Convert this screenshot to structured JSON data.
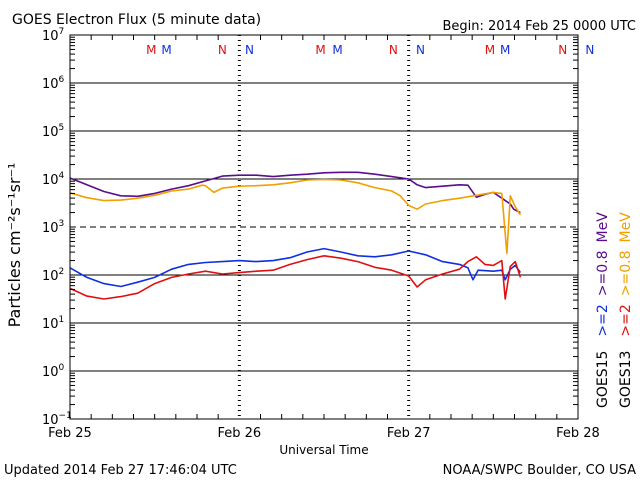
{
  "header": {
    "title": "GOES Electron Flux (5 minute data)",
    "begin": "Begin: 2014 Feb 25 0000 UTC"
  },
  "footer": {
    "updated": "Updated 2014 Feb 27 17:46:04 UTC",
    "source": "NOAA/SWPC Boulder, CO USA"
  },
  "colors": {
    "purple": "#5a0d8c",
    "orange": "#f0a000",
    "blue": "#1030e0",
    "red": "#e01010"
  },
  "chart_data": {
    "type": "line",
    "title": "GOES Electron Flux (5 minute data)",
    "xlabel": "Universal Time",
    "ylabel": "Particles cm⁻²s⁻¹sr⁻¹",
    "xlim": [
      0,
      3
    ],
    "ylim_log10": [
      -1,
      7
    ],
    "x_ticks": [
      {
        "x": 0,
        "label": "Feb 25"
      },
      {
        "x": 1,
        "label": "Feb 26"
      },
      {
        "x": 2,
        "label": "Feb 27"
      },
      {
        "x": 3,
        "label": "Feb 28"
      }
    ],
    "y_ticks": [
      {
        "exp": 7,
        "base": "10",
        "sup": "7"
      },
      {
        "exp": 6,
        "base": "10",
        "sup": "6"
      },
      {
        "exp": 5,
        "base": "10",
        "sup": "5"
      },
      {
        "exp": 4,
        "base": "10",
        "sup": "4"
      },
      {
        "exp": 3,
        "base": "10",
        "sup": "3"
      },
      {
        "exp": 2,
        "base": "10",
        "sup": "2"
      },
      {
        "exp": 1,
        "base": "10",
        "sup": "1"
      },
      {
        "exp": 0,
        "base": "10",
        "sup": "0"
      },
      {
        "exp": -1,
        "base": "10",
        "sup": "−1"
      }
    ],
    "threshold_log10": 3,
    "markers": [
      {
        "x": 0.48,
        "label": "M",
        "color": "#e01010"
      },
      {
        "x": 0.57,
        "label": "M",
        "color": "#1030e0"
      },
      {
        "x": 0.9,
        "label": "N",
        "color": "#e01010"
      },
      {
        "x": 1.06,
        "label": "N",
        "color": "#1030e0"
      },
      {
        "x": 1.48,
        "label": "M",
        "color": "#e01010"
      },
      {
        "x": 1.58,
        "label": "M",
        "color": "#1030e0"
      },
      {
        "x": 1.91,
        "label": "N",
        "color": "#e01010"
      },
      {
        "x": 2.07,
        "label": "N",
        "color": "#1030e0"
      },
      {
        "x": 2.48,
        "label": "M",
        "color": "#e01010"
      },
      {
        "x": 2.57,
        "label": "M",
        "color": "#1030e0"
      },
      {
        "x": 2.91,
        "label": "N",
        "color": "#e01010"
      },
      {
        "x": 3.07,
        "label": "N",
        "color": "#1030e0"
      }
    ],
    "legend": {
      "col1": [
        {
          "text": "GOES13",
          "color": "#000000"
        },
        {
          "text": ">=2",
          "color": "#e01010"
        },
        {
          "text": ">=0.8",
          "color": "#f0a000"
        }
      ],
      "col2": [
        {
          "text": "GOES15",
          "color": "#000000"
        },
        {
          "text": ">=2",
          "color": "#1030e0"
        },
        {
          "text": ">=0.8",
          "color": "#5a0d8c"
        }
      ],
      "unit": "MeV",
      "placement": "right"
    },
    "series": [
      {
        "name": "GOES15 >=0.8 MeV",
        "color": "#5a0d8c",
        "points": [
          [
            0,
            4.02
          ],
          [
            0.1,
            3.88
          ],
          [
            0.2,
            3.74
          ],
          [
            0.3,
            3.65
          ],
          [
            0.4,
            3.64
          ],
          [
            0.5,
            3.7
          ],
          [
            0.6,
            3.79
          ],
          [
            0.7,
            3.86
          ],
          [
            0.8,
            3.96
          ],
          [
            0.9,
            4.06
          ],
          [
            1.0,
            4.08
          ],
          [
            1.1,
            4.08
          ],
          [
            1.2,
            4.05
          ],
          [
            1.3,
            4.08
          ],
          [
            1.4,
            4.1
          ],
          [
            1.5,
            4.13
          ],
          [
            1.6,
            4.14
          ],
          [
            1.7,
            4.14
          ],
          [
            1.8,
            4.1
          ],
          [
            1.9,
            4.05
          ],
          [
            2.0,
            4.0
          ],
          [
            2.05,
            3.88
          ],
          [
            2.1,
            3.82
          ],
          [
            2.2,
            3.85
          ],
          [
            2.3,
            3.88
          ],
          [
            2.35,
            3.87
          ],
          [
            2.4,
            3.62
          ],
          [
            2.45,
            3.68
          ],
          [
            2.5,
            3.72
          ],
          [
            2.55,
            3.6
          ],
          [
            2.6,
            3.48
          ],
          [
            2.62,
            3.37
          ],
          [
            2.66,
            3.3
          ]
        ]
      },
      {
        "name": "GOES13 >=0.8 MeV",
        "color": "#f0a000",
        "points": [
          [
            0,
            3.71
          ],
          [
            0.1,
            3.61
          ],
          [
            0.2,
            3.55
          ],
          [
            0.3,
            3.56
          ],
          [
            0.4,
            3.6
          ],
          [
            0.5,
            3.66
          ],
          [
            0.6,
            3.75
          ],
          [
            0.7,
            3.79
          ],
          [
            0.78,
            3.87
          ],
          [
            0.8,
            3.86
          ],
          [
            0.85,
            3.72
          ],
          [
            0.9,
            3.81
          ],
          [
            1.0,
            3.85
          ],
          [
            1.1,
            3.86
          ],
          [
            1.2,
            3.88
          ],
          [
            1.3,
            3.92
          ],
          [
            1.4,
            3.98
          ],
          [
            1.5,
            3.99
          ],
          [
            1.6,
            3.98
          ],
          [
            1.7,
            3.92
          ],
          [
            1.8,
            3.82
          ],
          [
            1.9,
            3.75
          ],
          [
            1.95,
            3.65
          ],
          [
            2.0,
            3.45
          ],
          [
            2.05,
            3.37
          ],
          [
            2.1,
            3.48
          ],
          [
            2.2,
            3.55
          ],
          [
            2.3,
            3.6
          ],
          [
            2.4,
            3.66
          ],
          [
            2.5,
            3.72
          ],
          [
            2.55,
            3.7
          ],
          [
            2.58,
            2.45
          ],
          [
            2.6,
            3.65
          ],
          [
            2.63,
            3.42
          ],
          [
            2.66,
            3.25
          ]
        ]
      },
      {
        "name": "GOES15 >=2 MeV",
        "color": "#1030e0",
        "points": [
          [
            0,
            2.15
          ],
          [
            0.1,
            1.95
          ],
          [
            0.2,
            1.82
          ],
          [
            0.3,
            1.76
          ],
          [
            0.4,
            1.85
          ],
          [
            0.5,
            1.95
          ],
          [
            0.6,
            2.12
          ],
          [
            0.7,
            2.22
          ],
          [
            0.8,
            2.26
          ],
          [
            0.9,
            2.28
          ],
          [
            1.0,
            2.3
          ],
          [
            1.1,
            2.28
          ],
          [
            1.2,
            2.3
          ],
          [
            1.3,
            2.36
          ],
          [
            1.4,
            2.48
          ],
          [
            1.5,
            2.55
          ],
          [
            1.6,
            2.48
          ],
          [
            1.7,
            2.4
          ],
          [
            1.8,
            2.38
          ],
          [
            1.9,
            2.42
          ],
          [
            2.0,
            2.5
          ],
          [
            2.1,
            2.42
          ],
          [
            2.2,
            2.28
          ],
          [
            2.3,
            2.22
          ],
          [
            2.35,
            2.15
          ],
          [
            2.38,
            1.9
          ],
          [
            2.41,
            2.1
          ],
          [
            2.5,
            2.08
          ],
          [
            2.55,
            2.1
          ],
          [
            2.57,
            1.9
          ],
          [
            2.6,
            2.12
          ],
          [
            2.63,
            2.2
          ],
          [
            2.66,
            2.05
          ]
        ]
      },
      {
        "name": "GOES13 >=2 MeV",
        "color": "#e01010",
        "points": [
          [
            0,
            1.72
          ],
          [
            0.1,
            1.56
          ],
          [
            0.2,
            1.5
          ],
          [
            0.3,
            1.55
          ],
          [
            0.4,
            1.62
          ],
          [
            0.5,
            1.82
          ],
          [
            0.6,
            1.95
          ],
          [
            0.7,
            2.02
          ],
          [
            0.8,
            2.08
          ],
          [
            0.9,
            2.02
          ],
          [
            1.0,
            2.05
          ],
          [
            1.1,
            2.08
          ],
          [
            1.2,
            2.1
          ],
          [
            1.3,
            2.22
          ],
          [
            1.4,
            2.32
          ],
          [
            1.5,
            2.4
          ],
          [
            1.6,
            2.35
          ],
          [
            1.7,
            2.28
          ],
          [
            1.8,
            2.16
          ],
          [
            1.9,
            2.1
          ],
          [
            2.0,
            1.98
          ],
          [
            2.05,
            1.75
          ],
          [
            2.1,
            1.9
          ],
          [
            2.2,
            2.02
          ],
          [
            2.3,
            2.12
          ],
          [
            2.35,
            2.28
          ],
          [
            2.4,
            2.38
          ],
          [
            2.45,
            2.22
          ],
          [
            2.5,
            2.2
          ],
          [
            2.55,
            2.3
          ],
          [
            2.57,
            1.5
          ],
          [
            2.6,
            2.18
          ],
          [
            2.63,
            2.28
          ],
          [
            2.66,
            1.95
          ]
        ]
      }
    ]
  }
}
